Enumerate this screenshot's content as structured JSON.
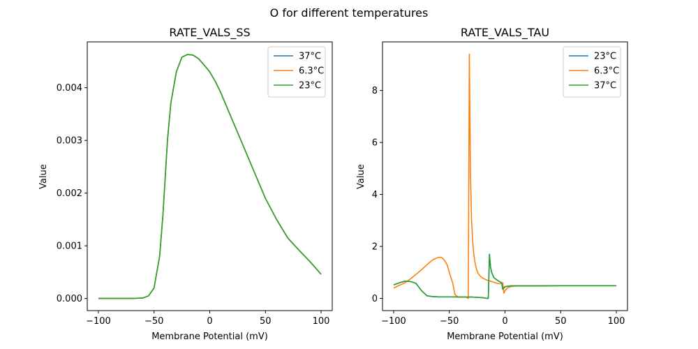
{
  "figure": {
    "suptitle": "O for different temperatures"
  },
  "chart_data": [
    {
      "type": "line",
      "title": "RATE_VALS_SS",
      "xlabel": "Membrane Potential (mV)",
      "ylabel": "Value",
      "xlim": [
        -110,
        110
      ],
      "ylim": [
        -0.00023,
        0.00487
      ],
      "xticks": [
        -100,
        -50,
        0,
        50,
        100
      ],
      "xtick_labels": [
        "−100",
        "−50",
        "0",
        "50",
        "100"
      ],
      "yticks": [
        0,
        0.001,
        0.002,
        0.003,
        0.004
      ],
      "ytick_labels": [
        "0.000",
        "0.001",
        "0.002",
        "0.003",
        "0.004"
      ],
      "legend": "top-right",
      "grid": false,
      "series": [
        {
          "name": "37°C",
          "color": "#1f77b4",
          "x": [
            -100,
            -90,
            -80,
            -70,
            -60,
            -55,
            -50,
            -45,
            -42,
            -40,
            -38,
            -35,
            -30,
            -25,
            -20,
            -15,
            -10,
            -5,
            0,
            5,
            10,
            20,
            30,
            40,
            50,
            60,
            70,
            80,
            90,
            100
          ],
          "y": [
            0,
            0,
            0,
            0,
            1e-05,
            5e-05,
            0.0002,
            0.0008,
            0.0016,
            0.0023,
            0.003,
            0.0037,
            0.0043,
            0.00458,
            0.00463,
            0.00462,
            0.00455,
            0.00443,
            0.0043,
            0.00412,
            0.0039,
            0.0034,
            0.0029,
            0.0024,
            0.0019,
            0.0015,
            0.00115,
            0.00092,
            0.0007,
            0.00046
          ]
        },
        {
          "name": "6.3°C",
          "color": "#ff7f0e",
          "x": [
            -100,
            -90,
            -80,
            -70,
            -60,
            -55,
            -50,
            -45,
            -42,
            -40,
            -38,
            -35,
            -30,
            -25,
            -20,
            -15,
            -10,
            -5,
            0,
            5,
            10,
            20,
            30,
            40,
            50,
            60,
            70,
            80,
            90,
            100
          ],
          "y": [
            0,
            0,
            0,
            0,
            1e-05,
            5e-05,
            0.0002,
            0.0008,
            0.0016,
            0.0023,
            0.003,
            0.0037,
            0.0043,
            0.00458,
            0.00463,
            0.00462,
            0.00455,
            0.00443,
            0.0043,
            0.00412,
            0.0039,
            0.0034,
            0.0029,
            0.0024,
            0.0019,
            0.0015,
            0.00115,
            0.00092,
            0.0007,
            0.00046
          ]
        },
        {
          "name": "23°C",
          "color": "#2ca02c",
          "x": [
            -100,
            -90,
            -80,
            -70,
            -60,
            -55,
            -50,
            -45,
            -42,
            -40,
            -38,
            -35,
            -30,
            -25,
            -20,
            -15,
            -10,
            -5,
            0,
            5,
            10,
            20,
            30,
            40,
            50,
            60,
            70,
            80,
            90,
            100
          ],
          "y": [
            0,
            0,
            0,
            0,
            1e-05,
            5e-05,
            0.0002,
            0.0008,
            0.0016,
            0.0023,
            0.003,
            0.0037,
            0.0043,
            0.00458,
            0.00463,
            0.00462,
            0.00455,
            0.00443,
            0.0043,
            0.00412,
            0.0039,
            0.0034,
            0.0029,
            0.0024,
            0.0019,
            0.0015,
            0.00115,
            0.00092,
            0.0007,
            0.00046
          ]
        }
      ]
    },
    {
      "type": "line",
      "title": "RATE_VALS_TAU",
      "xlabel": "Membrane Potential (mV)",
      "ylabel": "Value",
      "xlim": [
        -110,
        110
      ],
      "ylim": [
        -0.47,
        9.87
      ],
      "xticks": [
        -100,
        -50,
        0,
        50,
        100
      ],
      "xtick_labels": [
        "−100",
        "−50",
        "0",
        "50",
        "100"
      ],
      "yticks": [
        0,
        2,
        4,
        6,
        8
      ],
      "ytick_labels": [
        "0",
        "2",
        "4",
        "6",
        "8"
      ],
      "legend": "top-right",
      "grid": false,
      "series": [
        {
          "name": "23°C",
          "color": "#1f77b4",
          "x": [
            -100,
            -95,
            -90,
            -85,
            -80,
            -75,
            -70,
            -65,
            -60,
            -55,
            -50,
            -45,
            -40,
            -35,
            -30,
            -25,
            -20,
            -16,
            -15,
            -14,
            -13,
            -12,
            -10,
            -7,
            -5,
            -3,
            -2,
            0,
            5,
            10,
            20,
            50,
            100
          ],
          "y": [
            0.52,
            0.6,
            0.66,
            0.65,
            0.58,
            0.3,
            0.1,
            0.07,
            0.06,
            0.06,
            0.06,
            0.06,
            0.05,
            0.05,
            0.05,
            0.04,
            0.03,
            0.0,
            0.0,
            1.7,
            1.2,
            1.0,
            0.8,
            0.7,
            0.65,
            0.6,
            0.35,
            0.45,
            0.48,
            0.48,
            0.48,
            0.49,
            0.49
          ]
        },
        {
          "name": "6.3°C",
          "color": "#ff7f0e",
          "x": [
            -100,
            -95,
            -90,
            -85,
            -80,
            -75,
            -70,
            -65,
            -60,
            -57,
            -55,
            -52,
            -50,
            -47,
            -45,
            -42,
            -40,
            -35,
            -33,
            -32,
            -31,
            -30,
            -29,
            -28,
            -27,
            -26,
            -25,
            -24,
            -22,
            -20,
            -17,
            -15,
            -12,
            -10,
            -7,
            -5,
            -2,
            -1,
            0,
            2,
            5,
            10,
            20,
            50,
            100
          ],
          "y": [
            0.4,
            0.5,
            0.6,
            0.75,
            0.92,
            1.1,
            1.3,
            1.48,
            1.58,
            1.58,
            1.5,
            1.3,
            1.0,
            0.6,
            0.15,
            0.05,
            0.05,
            0.05,
            0.0,
            9.4,
            4.8,
            3.0,
            2.2,
            1.7,
            1.4,
            1.2,
            1.05,
            0.95,
            0.85,
            0.78,
            0.72,
            0.68,
            0.65,
            0.62,
            0.58,
            0.56,
            0.6,
            0.2,
            0.3,
            0.4,
            0.45,
            0.48,
            0.48,
            0.49,
            0.49
          ]
        },
        {
          "name": "37°C",
          "color": "#2ca02c",
          "x": [
            -100,
            -95,
            -90,
            -85,
            -80,
            -75,
            -70,
            -65,
            -60,
            -55,
            -50,
            -45,
            -40,
            -35,
            -30,
            -25,
            -20,
            -16,
            -15,
            -14,
            -13,
            -12,
            -10,
            -7,
            -5,
            -3,
            -2,
            0,
            5,
            10,
            20,
            50,
            100
          ],
          "y": [
            0.52,
            0.6,
            0.66,
            0.65,
            0.58,
            0.3,
            0.1,
            0.07,
            0.06,
            0.06,
            0.06,
            0.06,
            0.05,
            0.05,
            0.05,
            0.04,
            0.03,
            0.0,
            0.0,
            1.7,
            1.2,
            1.0,
            0.8,
            0.7,
            0.65,
            0.6,
            0.35,
            0.45,
            0.48,
            0.48,
            0.48,
            0.49,
            0.49
          ]
        }
      ]
    }
  ]
}
